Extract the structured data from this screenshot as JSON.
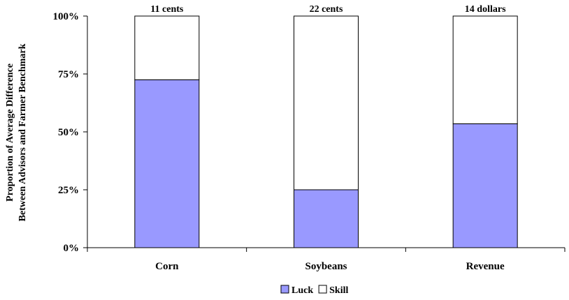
{
  "chart_data": {
    "type": "bar",
    "stacked": true,
    "percent": true,
    "categories": [
      "Corn",
      "Soybeans",
      "Revenue"
    ],
    "series": [
      {
        "name": "Luck",
        "color": "#9999ff",
        "values": [
          72.5,
          25,
          53.5
        ]
      },
      {
        "name": "Skill",
        "color": "#ffffff",
        "values": [
          27.5,
          75,
          46.5
        ]
      }
    ],
    "bar_top_labels": [
      "11 cents",
      "22 cents",
      "14 dollars"
    ],
    "ylabel_lines": [
      "Proportion of Average Difference",
      "Between Advisors and Farmer Benchmark"
    ],
    "yticks": [
      "0%",
      "25%",
      "50%",
      "75%",
      "100%"
    ],
    "ylim": [
      0,
      100
    ],
    "grid": false,
    "legend_position": "bottom-center"
  }
}
